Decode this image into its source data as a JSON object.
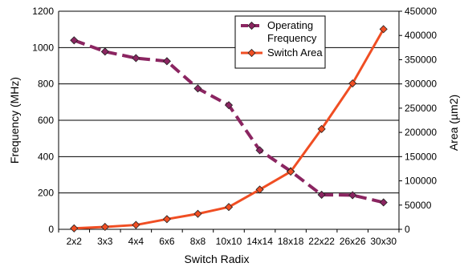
{
  "chart_data": {
    "type": "line",
    "title": "",
    "xlabel": "Switch Radix",
    "ylabel": "Frequency (MHz)",
    "y2label": "Area (µm2)",
    "categories": [
      "2x2",
      "3x3",
      "4x4",
      "6x6",
      "8x8",
      "10x10",
      "14x14",
      "18x18",
      "22x22",
      "26x26",
      "30x30"
    ],
    "ylim": [
      0,
      1200
    ],
    "y2lim": [
      0,
      450000
    ],
    "yticks": [
      "0",
      "200",
      "400",
      "600",
      "800",
      "1000",
      "1200"
    ],
    "y2ticks": [
      "0",
      "50000",
      "100000",
      "150000",
      "200000",
      "250000",
      "300000",
      "350000",
      "400000",
      "450000"
    ],
    "grid": "horizontal",
    "legend_position": "top-center",
    "series": [
      {
        "name": "Operating Frequency",
        "axis": "left",
        "values": [
          1040,
          978,
          942,
          925,
          775,
          683,
          435,
          320,
          190,
          188,
          148
        ],
        "color": "#8B2561",
        "marker": "diamond",
        "line_style": "dashed",
        "legend_lines": [
          "Operating",
          "Frequency"
        ]
      },
      {
        "name": "Switch Area",
        "axis": "right",
        "values": [
          2000,
          5000,
          9000,
          21000,
          32000,
          46000,
          82000,
          119000,
          207000,
          301000,
          413000
        ],
        "color": "#F04E23",
        "marker": "diamond",
        "line_style": "solid",
        "legend_lines": [
          "Switch Area"
        ]
      }
    ]
  }
}
